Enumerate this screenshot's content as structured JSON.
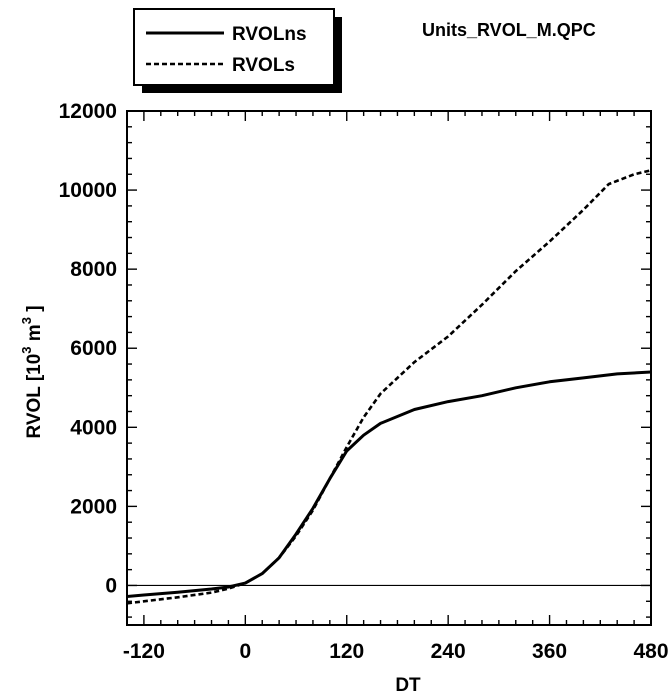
{
  "file_label": "Units_RVOL_M.QPC",
  "chart_data": {
    "type": "line",
    "xlabel": "DT",
    "ylabel": "RVOL [10^3 m^3]",
    "ylabel_base": "RVOL  [10",
    "ylabel_exp1": "3",
    "ylabel_mid": " m",
    "ylabel_exp2": "3",
    "ylabel_end": "  ]",
    "xlim": [
      -140,
      480
    ],
    "ylim": [
      -1000,
      12000
    ],
    "x_ticks": [
      -120,
      0,
      120,
      240,
      360,
      480
    ],
    "y_ticks": [
      0,
      2000,
      4000,
      6000,
      8000,
      10000,
      12000
    ],
    "x_tick_labels": [
      "-120",
      "0",
      "120",
      "240",
      "360",
      "480"
    ],
    "y_tick_labels": [
      "0",
      "2000",
      "4000",
      "6000",
      "8000",
      "10000",
      "12000"
    ],
    "zero_line": 0,
    "legend_placement": "top-left, outside plot",
    "series": [
      {
        "name": "RVOLns",
        "style": "solid",
        "color": "#000000",
        "x": [
          -140,
          -120,
          -80,
          -40,
          -20,
          0,
          20,
          40,
          60,
          80,
          100,
          120,
          140,
          160,
          200,
          240,
          280,
          320,
          360,
          400,
          440,
          480
        ],
        "y": [
          -280,
          -240,
          -170,
          -90,
          -40,
          60,
          300,
          700,
          1300,
          1950,
          2700,
          3400,
          3800,
          4100,
          4450,
          4650,
          4800,
          5000,
          5150,
          5250,
          5350,
          5400
        ]
      },
      {
        "name": "RVOLs",
        "style": "dashed",
        "color": "#000000",
        "x": [
          -140,
          -120,
          -80,
          -40,
          -20,
          0,
          20,
          40,
          60,
          80,
          100,
          120,
          140,
          160,
          200,
          240,
          280,
          320,
          360,
          400,
          430,
          460,
          480
        ],
        "y": [
          -450,
          -400,
          -300,
          -180,
          -80,
          60,
          300,
          700,
          1250,
          1900,
          2700,
          3500,
          4250,
          4850,
          5650,
          6300,
          7100,
          7950,
          8700,
          9500,
          10150,
          10400,
          10500
        ]
      }
    ]
  }
}
